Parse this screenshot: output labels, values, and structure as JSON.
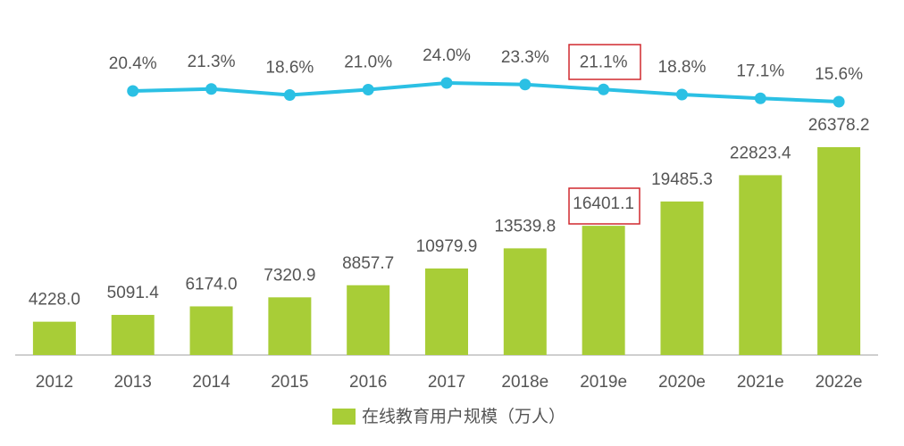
{
  "chart_data": {
    "type": "bar",
    "categories": [
      "2012",
      "2013",
      "2014",
      "2015",
      "2016",
      "2017",
      "2018e",
      "2019e",
      "2020e",
      "2021e",
      "2022e"
    ],
    "series": [
      {
        "name": "在线教育用户规模（万人）",
        "type": "bar",
        "color": "#a8cd37",
        "values": [
          4228.0,
          5091.4,
          6174.0,
          7320.9,
          8857.7,
          10979.9,
          13539.8,
          16401.1,
          19485.3,
          22823.4,
          26378.2
        ],
        "value_labels": [
          "4228.0",
          "5091.4",
          "6174.0",
          "7320.9",
          "8857.7",
          "10979.9",
          "13539.8",
          "16401.1",
          "19485.3",
          "22823.4",
          "26378.2"
        ]
      },
      {
        "type": "line",
        "axis": "y2",
        "color": "#2bc0e4",
        "values": [
          null,
          20.4,
          21.3,
          18.6,
          21.0,
          24.0,
          23.3,
          21.1,
          18.8,
          17.1,
          15.6
        ],
        "value_labels": [
          null,
          "20.4%",
          "21.3%",
          "18.6%",
          "21.0%",
          "24.0%",
          "23.3%",
          "21.1%",
          "18.8%",
          "17.1%",
          "15.6%"
        ]
      }
    ],
    "ylim": [
      0,
      30000
    ],
    "y2lim": [
      0,
      40
    ],
    "legend": "bottom"
  }
}
